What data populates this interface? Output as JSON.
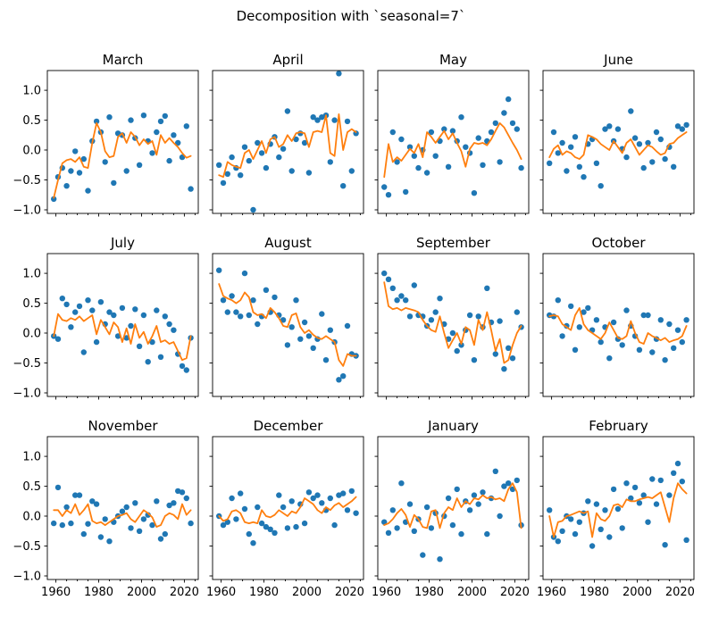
{
  "suptitle": "Decomposition with `seasonal=7`",
  "chart_data": {
    "type": "scatter",
    "description": "3x4 grid of monthly seasonal-component subplots, blue yearly scatter points with orange smoothed trend line",
    "layout": {
      "rows": 3,
      "cols": 4,
      "grid": true,
      "legend": "none"
    },
    "xlabel": "",
    "ylabel": "",
    "xlim": [
      1956,
      2026.5
    ],
    "ylim": [
      -1.06,
      1.33
    ],
    "xticks": [
      1960,
      1980,
      2000,
      2020
    ],
    "xtick_minor_step": 5,
    "yticks": [
      -1.0,
      -0.5,
      0.0,
      0.5,
      1.0
    ],
    "colors": {
      "scatter": "#1f77b4",
      "trend": "#ff7f0e",
      "spine": "#000000"
    },
    "x_years": [
      1959,
      1961,
      1963,
      1965,
      1967,
      1969,
      1971,
      1973,
      1975,
      1977,
      1979,
      1981,
      1983,
      1985,
      1987,
      1989,
      1991,
      1993,
      1995,
      1997,
      1999,
      2001,
      2003,
      2005,
      2007,
      2009,
      2011,
      2013,
      2015,
      2017,
      2019,
      2021,
      2023
    ],
    "subplots": [
      {
        "title": "March",
        "scatter": [
          -0.82,
          -0.45,
          -0.3,
          -0.6,
          -0.35,
          -0.02,
          -0.38,
          -0.15,
          -0.68,
          0.15,
          0.48,
          0.3,
          -0.2,
          0.55,
          -0.55,
          0.28,
          0.25,
          -0.35,
          0.5,
          0.2,
          -0.25,
          0.58,
          0.15,
          -0.05,
          0.3,
          0.48,
          0.57,
          -0.18,
          0.25,
          0.12,
          -0.12,
          0.4,
          -0.65
        ],
        "trend": [
          -0.8,
          -0.5,
          -0.22,
          -0.17,
          -0.15,
          -0.2,
          -0.12,
          -0.28,
          -0.3,
          0.12,
          0.45,
          0.3,
          -0.02,
          -0.12,
          -0.1,
          0.22,
          0.28,
          0.12,
          0.3,
          0.22,
          0.08,
          0.18,
          0.1,
          0.15,
          -0.08,
          0.25,
          0.12,
          0.2,
          0.12,
          0.05,
          -0.05,
          -0.13,
          -0.1
        ]
      },
      {
        "title": "April",
        "scatter": [
          -0.25,
          -0.55,
          -0.4,
          -0.12,
          -0.3,
          -0.42,
          0.05,
          -0.18,
          -1.0,
          0.12,
          -0.05,
          -0.3,
          0.1,
          0.22,
          -0.12,
          0.02,
          0.65,
          -0.35,
          0.18,
          0.28,
          0.12,
          -0.38,
          0.55,
          0.5,
          0.55,
          0.58,
          -0.2,
          0.5,
          1.28,
          -0.6,
          0.48,
          -0.35,
          0.28
        ],
        "trend": [
          -0.42,
          -0.45,
          -0.2,
          -0.25,
          -0.28,
          -0.3,
          -0.05,
          0.0,
          -0.15,
          0.0,
          0.15,
          -0.05,
          0.18,
          0.22,
          0.05,
          0.1,
          0.25,
          0.15,
          0.28,
          0.3,
          0.28,
          0.05,
          0.3,
          0.32,
          0.3,
          0.58,
          -0.05,
          -0.1,
          0.6,
          0.0,
          0.3,
          0.35,
          0.3
        ]
      },
      {
        "title": "May",
        "scatter": [
          -0.62,
          -0.75,
          0.3,
          -0.2,
          0.18,
          -0.7,
          0.05,
          -0.1,
          -0.3,
          0.0,
          -0.38,
          0.3,
          -0.1,
          0.15,
          0.35,
          -0.28,
          0.32,
          0.15,
          0.55,
          0.05,
          -0.05,
          -0.72,
          0.2,
          -0.25,
          0.15,
          0.3,
          0.45,
          -0.2,
          0.62,
          0.85,
          0.45,
          0.35,
          -0.3
        ],
        "trend": [
          -0.45,
          0.1,
          -0.2,
          -0.12,
          -0.18,
          -0.08,
          0.02,
          -0.05,
          0.1,
          -0.12,
          0.3,
          0.22,
          0.12,
          0.22,
          0.32,
          0.18,
          0.28,
          0.12,
          -0.02,
          -0.28,
          0.02,
          0.12,
          0.1,
          0.12,
          0.08,
          0.18,
          0.32,
          0.45,
          0.38,
          0.25,
          0.12,
          0.0,
          -0.15
        ]
      },
      {
        "title": "June",
        "scatter": [
          -0.22,
          0.3,
          -0.05,
          0.12,
          -0.35,
          0.05,
          0.22,
          -0.28,
          -0.45,
          0.1,
          0.18,
          -0.22,
          -0.6,
          0.35,
          0.4,
          0.15,
          0.35,
          0.02,
          -0.12,
          0.65,
          0.2,
          0.1,
          -0.3,
          0.12,
          -0.2,
          0.3,
          0.18,
          -0.15,
          0.05,
          -0.28,
          0.4,
          0.35,
          0.42
        ],
        "trend": [
          -0.12,
          0.02,
          0.08,
          -0.08,
          -0.02,
          -0.05,
          -0.12,
          -0.15,
          -0.08,
          0.25,
          0.22,
          0.18,
          0.1,
          0.05,
          0.0,
          0.15,
          0.05,
          -0.05,
          0.12,
          0.18,
          0.05,
          -0.08,
          0.0,
          0.08,
          0.05,
          -0.02,
          -0.08,
          -0.05,
          0.1,
          0.12,
          0.2,
          0.25,
          0.3
        ]
      },
      {
        "title": "July",
        "scatter": [
          -0.05,
          -0.1,
          0.58,
          0.48,
          0.1,
          0.35,
          0.45,
          -0.32,
          0.55,
          0.38,
          -0.15,
          0.52,
          0.15,
          0.35,
          0.3,
          -0.05,
          0.42,
          -0.08,
          0.12,
          0.4,
          -0.22,
          0.3,
          -0.48,
          -0.15,
          0.38,
          -0.4,
          0.28,
          0.15,
          0.05,
          -0.35,
          -0.55,
          -0.62,
          -0.08
        ],
        "trend": [
          -0.05,
          0.32,
          0.22,
          0.2,
          0.25,
          0.22,
          0.28,
          0.2,
          0.25,
          0.3,
          -0.02,
          0.22,
          0.1,
          -0.02,
          0.18,
          0.1,
          -0.15,
          0.08,
          -0.18,
          0.15,
          -0.08,
          0.02,
          -0.18,
          -0.05,
          0.12,
          -0.15,
          -0.12,
          -0.18,
          -0.15,
          -0.3,
          -0.45,
          -0.42,
          -0.05
        ]
      },
      {
        "title": "August",
        "scatter": [
          1.05,
          0.55,
          0.35,
          0.62,
          0.35,
          0.28,
          1.0,
          0.3,
          0.55,
          0.15,
          0.28,
          0.72,
          0.35,
          0.6,
          0.3,
          0.22,
          -0.2,
          0.1,
          0.55,
          -0.1,
          0.18,
          -0.05,
          -0.25,
          -0.1,
          0.32,
          -0.45,
          0.05,
          -0.15,
          -0.78,
          -0.72,
          0.12,
          -0.35,
          -0.38
        ],
        "trend": [
          0.82,
          0.62,
          0.58,
          0.55,
          0.5,
          0.55,
          0.68,
          0.6,
          0.35,
          0.3,
          0.32,
          0.25,
          0.42,
          0.35,
          0.25,
          0.12,
          0.1,
          0.3,
          0.33,
          0.1,
          0.0,
          0.05,
          -0.03,
          -0.08,
          -0.1,
          -0.05,
          -0.1,
          -0.15,
          -0.45,
          -0.55,
          -0.35,
          -0.38,
          -0.38
        ]
      },
      {
        "title": "September",
        "scatter": [
          1.0,
          0.9,
          0.75,
          0.55,
          0.62,
          0.55,
          0.28,
          0.8,
          0.3,
          0.28,
          0.12,
          0.22,
          0.35,
          0.58,
          0.15,
          -0.1,
          0.0,
          -0.3,
          -0.2,
          0.05,
          0.3,
          -0.45,
          0.28,
          0.1,
          0.75,
          0.18,
          -0.35,
          0.2,
          -0.6,
          -0.25,
          -0.42,
          0.35,
          0.1
        ],
        "trend": [
          0.85,
          0.45,
          0.4,
          0.42,
          0.38,
          0.42,
          0.4,
          0.38,
          0.35,
          0.22,
          0.12,
          0.05,
          0.02,
          0.28,
          0.0,
          -0.25,
          -0.12,
          0.0,
          -0.18,
          0.1,
          0.05,
          -0.2,
          0.22,
          0.05,
          0.35,
          0.05,
          -0.3,
          -0.1,
          -0.5,
          -0.45,
          -0.2,
          0.0,
          0.12
        ]
      },
      {
        "title": "October",
        "scatter": [
          0.3,
          0.28,
          0.55,
          -0.05,
          0.12,
          0.45,
          -0.28,
          0.1,
          0.35,
          0.42,
          0.05,
          0.22,
          -0.15,
          0.1,
          -0.42,
          0.18,
          -0.1,
          -0.2,
          0.38,
          0.12,
          -0.05,
          -0.28,
          0.3,
          0.3,
          -0.32,
          -0.1,
          0.22,
          -0.45,
          0.15,
          -0.25,
          0.05,
          -0.15,
          0.22
        ],
        "trend": [
          0.28,
          0.3,
          0.28,
          0.15,
          0.1,
          0.05,
          0.3,
          0.42,
          0.15,
          0.05,
          0.0,
          -0.05,
          -0.1,
          0.0,
          0.18,
          0.05,
          -0.08,
          -0.1,
          -0.05,
          0.2,
          0.0,
          -0.15,
          -0.18,
          0.0,
          -0.05,
          -0.08,
          -0.12,
          -0.08,
          -0.15,
          -0.12,
          -0.1,
          -0.05,
          0.12
        ]
      },
      {
        "title": "November",
        "scatter": [
          -0.12,
          0.48,
          -0.15,
          0.15,
          -0.12,
          0.35,
          0.35,
          -0.3,
          -0.13,
          0.25,
          0.2,
          -0.35,
          -0.05,
          -0.42,
          -0.1,
          0.0,
          0.08,
          0.15,
          -0.2,
          0.22,
          -0.25,
          -0.05,
          0.02,
          -0.15,
          0.25,
          -0.38,
          -0.3,
          0.18,
          0.22,
          0.42,
          0.4,
          0.3,
          -0.12
        ],
        "trend": [
          0.1,
          0.1,
          0.0,
          0.1,
          0.05,
          0.2,
          0.02,
          0.1,
          0.2,
          -0.08,
          -0.12,
          -0.1,
          -0.15,
          -0.1,
          -0.05,
          0.0,
          0.02,
          0.05,
          -0.05,
          -0.1,
          0.0,
          0.1,
          0.05,
          -0.02,
          -0.18,
          -0.15,
          0.0,
          0.05,
          0.02,
          -0.05,
          0.2,
          0.02,
          0.1
        ]
      },
      {
        "title": "December",
        "scatter": [
          0.0,
          -0.15,
          -0.1,
          0.3,
          -0.05,
          0.38,
          0.12,
          -0.3,
          -0.45,
          0.15,
          -0.12,
          -0.18,
          -0.22,
          -0.28,
          0.35,
          0.15,
          -0.2,
          0.25,
          -0.18,
          0.2,
          -0.12,
          0.4,
          0.3,
          0.35,
          0.22,
          0.1,
          0.3,
          -0.15,
          0.35,
          0.38,
          0.1,
          0.42,
          0.05
        ],
        "trend": [
          0.0,
          -0.08,
          -0.05,
          0.08,
          0.1,
          0.05,
          -0.1,
          -0.12,
          -0.1,
          -0.12,
          0.1,
          0.0,
          -0.02,
          0.02,
          0.1,
          0.05,
          0.0,
          0.08,
          0.05,
          0.15,
          0.3,
          0.25,
          0.2,
          0.1,
          0.05,
          0.15,
          0.1,
          0.18,
          0.22,
          0.15,
          0.2,
          0.25,
          0.32
        ]
      },
      {
        "title": "January",
        "scatter": [
          -0.1,
          -0.28,
          0.1,
          -0.2,
          0.55,
          -0.1,
          0.2,
          -0.25,
          -0.05,
          -0.65,
          0.15,
          -0.2,
          0.05,
          -0.72,
          0.0,
          0.3,
          -0.15,
          0.45,
          -0.3,
          0.25,
          0.1,
          0.35,
          0.2,
          0.4,
          -0.3,
          0.3,
          0.75,
          0.0,
          0.5,
          0.55,
          0.45,
          0.6,
          -0.15
        ],
        "trend": [
          -0.15,
          -0.12,
          -0.05,
          0.05,
          0.12,
          0.02,
          -0.18,
          0.02,
          -0.05,
          -0.18,
          -0.2,
          0.08,
          0.1,
          -0.2,
          0.05,
          0.15,
          0.1,
          0.3,
          0.15,
          0.25,
          0.2,
          0.3,
          0.28,
          0.35,
          0.3,
          0.32,
          0.28,
          0.3,
          0.25,
          0.45,
          0.55,
          0.4,
          -0.2
        ]
      },
      {
        "title": "February",
        "scatter": [
          0.1,
          -0.35,
          -0.42,
          -0.25,
          0.0,
          -0.05,
          -0.3,
          -0.1,
          0.05,
          0.25,
          -0.5,
          0.2,
          -0.22,
          0.1,
          -0.35,
          0.45,
          0.12,
          -0.2,
          0.55,
          0.3,
          0.48,
          0.22,
          0.35,
          -0.1,
          0.62,
          0.2,
          0.6,
          -0.48,
          0.35,
          0.72,
          0.88,
          0.58,
          -0.4
        ],
        "trend": [
          0.0,
          -0.35,
          -0.1,
          -0.08,
          0.0,
          0.02,
          0.05,
          0.08,
          0.05,
          0.08,
          -0.35,
          0.05,
          -0.05,
          -0.08,
          0.0,
          0.18,
          0.2,
          0.15,
          0.28,
          0.25,
          0.25,
          0.28,
          0.3,
          0.32,
          0.3,
          0.35,
          0.4,
          0.15,
          -0.1,
          0.3,
          0.55,
          0.45,
          0.38
        ]
      }
    ]
  }
}
